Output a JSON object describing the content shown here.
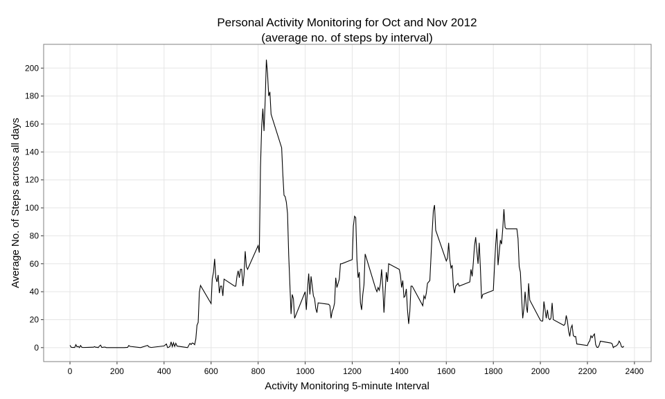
{
  "chart_data": {
    "type": "line",
    "title": "Personal Activity Monitoring for Oct and Nov 2012",
    "subtitle": "(average no. of steps by interval)",
    "x_label": "Activity Monitoring 5-minute Interval",
    "y_label": "Average No. of Steps across all days",
    "xlim": [
      -112,
      2471
    ],
    "ylim": [
      -10,
      217
    ],
    "xticks": [
      0,
      200,
      400,
      600,
      800,
      1000,
      1200,
      1400,
      1600,
      1800,
      2000,
      2200,
      2400
    ],
    "yticks": [
      0,
      20,
      40,
      60,
      80,
      100,
      120,
      140,
      160,
      180,
      200
    ],
    "grid": true,
    "color": "#000000",
    "x": [
      0,
      5,
      10,
      15,
      20,
      25,
      30,
      35,
      40,
      45,
      50,
      55,
      100,
      105,
      110,
      115,
      120,
      125,
      130,
      135,
      140,
      145,
      150,
      155,
      200,
      230,
      245,
      250,
      255,
      300,
      330,
      335,
      345,
      400,
      410,
      415,
      420,
      425,
      430,
      435,
      440,
      445,
      450,
      455,
      500,
      505,
      510,
      515,
      520,
      525,
      530,
      535,
      540,
      545,
      550,
      555,
      600,
      605,
      610,
      615,
      620,
      625,
      630,
      635,
      640,
      645,
      650,
      655,
      700,
      705,
      710,
      715,
      720,
      725,
      730,
      735,
      740,
      745,
      750,
      755,
      800,
      805,
      810,
      815,
      820,
      825,
      830,
      835,
      840,
      845,
      850,
      855,
      900,
      905,
      910,
      915,
      920,
      925,
      930,
      935,
      940,
      945,
      950,
      955,
      1000,
      1005,
      1010,
      1015,
      1020,
      1025,
      1030,
      1035,
      1040,
      1045,
      1050,
      1055,
      1100,
      1105,
      1110,
      1115,
      1120,
      1125,
      1130,
      1135,
      1140,
      1145,
      1150,
      1155,
      1200,
      1205,
      1210,
      1215,
      1220,
      1225,
      1230,
      1235,
      1240,
      1245,
      1250,
      1255,
      1300,
      1305,
      1310,
      1315,
      1320,
      1325,
      1330,
      1335,
      1340,
      1345,
      1350,
      1355,
      1400,
      1405,
      1410,
      1415,
      1420,
      1425,
      1430,
      1435,
      1440,
      1445,
      1450,
      1455,
      1500,
      1505,
      1510,
      1515,
      1520,
      1525,
      1530,
      1535,
      1540,
      1545,
      1550,
      1555,
      1600,
      1605,
      1610,
      1615,
      1620,
      1625,
      1630,
      1635,
      1640,
      1645,
      1650,
      1655,
      1700,
      1705,
      1710,
      1715,
      1720,
      1725,
      1730,
      1735,
      1740,
      1745,
      1750,
      1755,
      1800,
      1805,
      1810,
      1815,
      1820,
      1825,
      1830,
      1835,
      1840,
      1845,
      1850,
      1855,
      1900,
      1905,
      1910,
      1915,
      1920,
      1925,
      1930,
      1935,
      1940,
      1945,
      1950,
      1955,
      2000,
      2005,
      2010,
      2015,
      2020,
      2025,
      2030,
      2035,
      2040,
      2045,
      2050,
      2055,
      2100,
      2105,
      2110,
      2115,
      2120,
      2125,
      2130,
      2135,
      2140,
      2145,
      2150,
      2155,
      2200,
      2205,
      2210,
      2215,
      2220,
      2225,
      2230,
      2235,
      2240,
      2245,
      2250,
      2255,
      2300,
      2305,
      2310,
      2315,
      2320,
      2325,
      2330,
      2335,
      2340,
      2345,
      2350,
      2355
    ],
    "values": [
      1.7,
      0.3,
      0.1,
      0.2,
      0.1,
      2.1,
      0.5,
      0.9,
      0,
      1.5,
      0.3,
      0.1,
      0.3,
      0.7,
      0.2,
      0.3,
      0,
      1.1,
      1.8,
      0.2,
      0.2,
      0.4,
      0.3,
      0,
      0,
      0,
      0.2,
      1.5,
      0.9,
      0,
      1.6,
      0.6,
      0.1,
      1.2,
      2.6,
      0,
      0.3,
      0.9,
      4.1,
      0.7,
      3.5,
      0.8,
      3.1,
      1.1,
      0,
      1.6,
      3,
      2.2,
      3.3,
      3,
      2.1,
      6.1,
      16,
      18,
      39.5,
      44.5,
      31.5,
      49.3,
      53.8,
      63.5,
      50,
      47,
      52,
      39,
      44,
      44,
      37,
      49,
      44,
      44,
      51,
      55,
      50,
      56,
      56,
      44,
      52,
      69,
      58,
      56,
      73,
      68,
      129,
      158,
      171,
      155,
      177,
      206,
      196,
      180,
      183,
      167,
      143,
      124,
      109,
      108,
      104,
      96,
      66,
      45,
      24,
      38,
      35,
      21,
      40,
      27,
      42,
      53,
      38,
      51,
      44,
      37,
      35,
      28,
      25,
      32,
      31,
      30,
      21,
      26,
      28,
      32,
      50,
      43,
      46,
      49,
      60,
      60,
      63,
      87,
      94,
      93,
      63,
      50,
      54,
      32,
      27,
      38,
      45,
      67,
      42,
      40,
      43,
      41,
      46,
      56,
      43,
      25,
      40,
      54,
      47,
      60,
      56,
      52,
      43,
      48,
      36,
      37,
      42,
      27,
      17,
      26,
      44,
      44,
      30,
      37,
      35,
      39,
      46,
      47,
      48,
      65,
      83,
      98,
      102,
      84,
      62,
      64,
      75,
      63,
      57,
      59,
      44,
      39,
      44,
      45,
      46,
      44,
      47,
      56,
      51,
      61,
      73,
      79,
      69,
      60,
      75,
      57,
      35,
      38,
      41,
      58,
      74,
      85,
      59,
      68,
      77,
      74,
      85,
      99,
      86,
      85,
      85,
      78,
      58,
      54,
      37,
      21,
      28,
      40,
      30,
      25,
      46,
      34,
      19.6,
      19,
      19,
      33,
      27,
      21,
      27,
      21,
      20,
      21,
      32,
      20,
      15.9,
      17,
      23,
      19,
      12,
      8,
      14,
      16,
      8.7,
      7.8,
      8,
      2.6,
      1.5,
      3.7,
      4.8,
      8.5,
      7.1,
      8.7,
      9.8,
      2.2,
      0.3,
      0.1,
      1.6,
      4.6,
      3.3,
      2.8,
      0,
      0.8,
      1,
      1.6,
      2.6,
      4.7,
      3.3,
      0.6,
      0.2,
      1.1
    ]
  }
}
